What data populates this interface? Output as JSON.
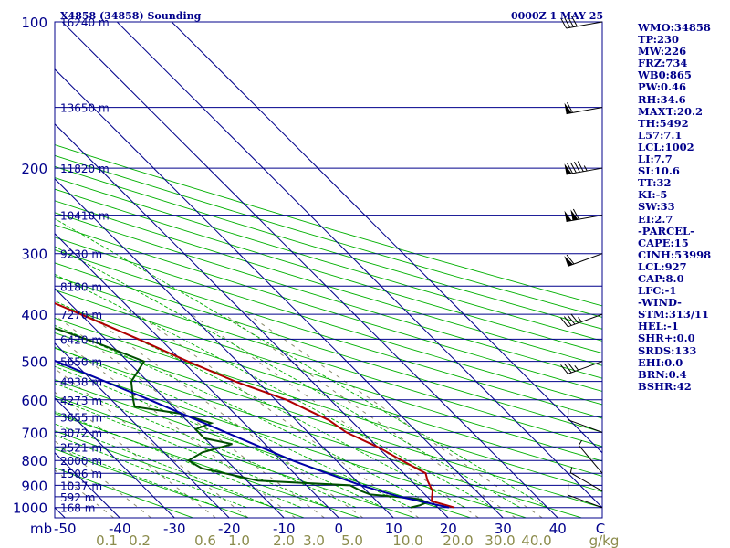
{
  "header": {
    "station": "X4858 (34858) Sounding",
    "time": "0000Z  1 MAY 25"
  },
  "colors": {
    "background": "#ffffff",
    "isobar": "#00008b",
    "isotherm": "#00008b",
    "dry_adiabat": "#00b000",
    "moist_adiabat": "#00b000",
    "mixing_ratio": "#8b8b6b",
    "temperature": "#b00000",
    "dewpoint": "#005000",
    "parcel": "#0000a8",
    "text": "#00008b",
    "mixing_label": "#8b8b4b"
  },
  "side_panel": [
    "WMO:34858",
    "TP:230",
    "MW:226",
    "FRZ:734",
    "WB0:865",
    "PW:0.46",
    "RH:34.6",
    "MAXT:20.2",
    "TH:5492",
    "L57:7.1",
    "LCL:1002",
    "LI:7.7",
    "SI:10.6",
    "TT:32",
    "KI:-5",
    "SW:33",
    "EI:2.7",
    "-PARCEL-",
    "CAPE:15",
    "CINH:53998",
    "LCL:927",
    "CAP:8.0",
    "LFC:-1",
    "-WIND-",
    "STM:313/11",
    "HEL:-1",
    "SHR+:0.0",
    "SRDS:133",
    "EHI:0.0",
    "BRN:0.4",
    "BSHR:42"
  ],
  "chart_data": {
    "type": "skew-t",
    "title": "X4858 (34858) Sounding",
    "time": "0000Z  1 MAY 25",
    "pressure_axis": {
      "label": "mb",
      "ticks": [
        100,
        200,
        300,
        400,
        500,
        600,
        700,
        800,
        900,
        1000
      ],
      "range": [
        1050,
        100
      ],
      "scale": "log"
    },
    "temperature_axis": {
      "ticks": [
        -50,
        -40,
        -30,
        -20,
        -10,
        0,
        10,
        20,
        30,
        40
      ],
      "end_label": "C"
    },
    "mixing_ratio_axis": {
      "unit": "g/kg",
      "ticks": [
        "0.1",
        "0.2",
        "0.6",
        "1.0",
        "2.0",
        "3.0",
        "5.0",
        "10.0",
        "20.0",
        "30.0",
        "40.0"
      ]
    },
    "height_labels": [
      {
        "p": 100,
        "label": "16240 m"
      },
      {
        "p": 150,
        "label": "13650 m"
      },
      {
        "p": 200,
        "label": "11820 m"
      },
      {
        "p": 250,
        "label": "10410 m"
      },
      {
        "p": 300,
        "label": "9230 m"
      },
      {
        "p": 350,
        "label": "8180 m"
      },
      {
        "p": 400,
        "label": "7270 m"
      },
      {
        "p": 450,
        "label": "6420 m"
      },
      {
        "p": 500,
        "label": "5650 m"
      },
      {
        "p": 550,
        "label": "4938 m"
      },
      {
        "p": 600,
        "label": "4273 m"
      },
      {
        "p": 650,
        "label": "3655 m"
      },
      {
        "p": 700,
        "label": "3072 m"
      },
      {
        "p": 750,
        "label": "2521 m"
      },
      {
        "p": 800,
        "label": "2000 m"
      },
      {
        "p": 850,
        "label": "1506 m"
      },
      {
        "p": 900,
        "label": "1037 m"
      },
      {
        "p": 950,
        "label": "592 m"
      },
      {
        "p": 1000,
        "label": "168 m"
      }
    ],
    "series": [
      {
        "name": "temperature",
        "points": [
          [
            1000,
            23
          ],
          [
            990,
            22
          ],
          [
            970,
            20
          ],
          [
            925,
            22
          ],
          [
            880,
            23
          ],
          [
            850,
            24
          ],
          [
            800,
            22
          ],
          [
            750,
            20
          ],
          [
            700,
            17
          ],
          [
            660,
            16
          ],
          [
            600,
            12
          ],
          [
            550,
            6
          ],
          [
            500,
            1
          ],
          [
            450,
            -4
          ],
          [
            400,
            -10
          ],
          [
            350,
            -17
          ],
          [
            300,
            -25
          ],
          [
            270,
            -31
          ],
          [
            250,
            -37
          ],
          [
            240,
            -36
          ],
          [
            230,
            -32
          ],
          [
            210,
            -28
          ],
          [
            200,
            -28
          ],
          [
            180,
            -29
          ],
          [
            160,
            -31
          ],
          [
            150,
            -32
          ],
          [
            130,
            -36
          ],
          [
            110,
            -40
          ],
          [
            100,
            -44
          ]
        ]
      },
      {
        "name": "dewpoint",
        "points": [
          [
            1000,
            15
          ],
          [
            990,
            17
          ],
          [
            975,
            19
          ],
          [
            960,
            18
          ],
          [
            940,
            10
          ],
          [
            925,
            9
          ],
          [
            900,
            8
          ],
          [
            880,
            -8
          ],
          [
            830,
            -16
          ],
          [
            800,
            -17
          ],
          [
            770,
            -13
          ],
          [
            740,
            -6
          ],
          [
            720,
            -10
          ],
          [
            690,
            -10
          ],
          [
            670,
            -6
          ],
          [
            640,
            -10
          ],
          [
            620,
            -17
          ],
          [
            600,
            -16
          ],
          [
            550,
            -13
          ],
          [
            500,
            -7
          ],
          [
            460,
            -12
          ],
          [
            400,
            -22
          ],
          [
            350,
            -31
          ],
          [
            300,
            -40
          ],
          [
            250,
            -50
          ],
          [
            240,
            -50
          ],
          [
            230,
            -52
          ],
          [
            210,
            -51
          ],
          [
            190,
            -48
          ],
          [
            170,
            -43
          ],
          [
            150,
            -37
          ],
          [
            130,
            -42
          ],
          [
            110,
            -47
          ],
          [
            100,
            -48
          ]
        ]
      },
      {
        "name": "parcel",
        "points": [
          [
            1000,
            22
          ],
          [
            950,
            15
          ],
          [
            900,
            10
          ],
          [
            850,
            6
          ],
          [
            800,
            2
          ],
          [
            700,
            -5
          ],
          [
            600,
            -13
          ],
          [
            500,
            -23
          ],
          [
            400,
            -35
          ],
          [
            300,
            -50
          ],
          [
            250,
            -59
          ],
          [
            200,
            -70
          ],
          [
            150,
            -83
          ],
          [
            125,
            -90
          ],
          [
            110,
            -95
          ]
        ]
      }
    ],
    "wind_barbs": [
      {
        "p": 1000,
        "dir": 290,
        "spd": 10
      },
      {
        "p": 925,
        "dir": 300,
        "spd": 5
      },
      {
        "p": 850,
        "dir": 320,
        "spd": 5
      },
      {
        "p": 700,
        "dir": 290,
        "spd": 10
      },
      {
        "p": 500,
        "dir": 250,
        "spd": 35
      },
      {
        "p": 400,
        "dir": 250,
        "spd": 45
      },
      {
        "p": 300,
        "dir": 250,
        "spd": 60
      },
      {
        "p": 250,
        "dir": 260,
        "spd": 110
      },
      {
        "p": 200,
        "dir": 260,
        "spd": 95
      },
      {
        "p": 150,
        "dir": 260,
        "spd": 60
      },
      {
        "p": 100,
        "dir": 260,
        "spd": 40
      }
    ]
  }
}
